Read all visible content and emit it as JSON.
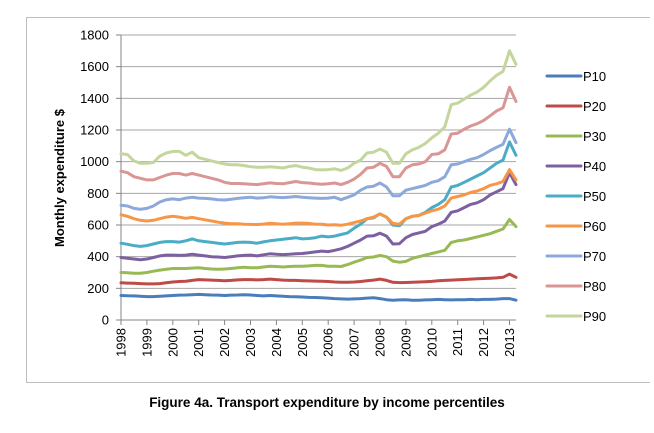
{
  "caption": "Figure 4a. Transport expenditure by income percentiles",
  "chart_data": {
    "type": "line",
    "title": "",
    "xlabel": "",
    "ylabel": "Monthly expenditure $",
    "ylim": [
      0,
      1800
    ],
    "yticks": [
      0,
      200,
      400,
      600,
      800,
      1000,
      1200,
      1400,
      1600,
      1800
    ],
    "xticks": [
      "1998",
      "1999",
      "2000",
      "2001",
      "2002",
      "2003",
      "2004",
      "2005",
      "2006",
      "2007",
      "2008",
      "2009",
      "2010",
      "2011",
      "2012",
      "2013"
    ],
    "x_start": 1998.0,
    "x_step": 0.25,
    "grid": "horizontal",
    "legend_position": "right",
    "series": [
      {
        "name": "P10",
        "color": "#4a7ebb",
        "values": [
          155,
          153,
          152,
          150,
          148,
          148,
          150,
          152,
          155,
          157,
          158,
          160,
          162,
          160,
          158,
          157,
          155,
          157,
          158,
          160,
          158,
          155,
          152,
          155,
          152,
          150,
          148,
          147,
          145,
          143,
          142,
          140,
          138,
          135,
          133,
          132,
          133,
          135,
          138,
          140,
          135,
          128,
          125,
          127,
          128,
          125,
          125,
          127,
          128,
          130,
          128,
          127,
          128,
          128,
          130,
          128,
          130,
          130,
          132,
          135,
          135,
          125
        ]
      },
      {
        "name": "P20",
        "color": "#be4b48",
        "values": [
          235,
          233,
          232,
          230,
          228,
          228,
          230,
          235,
          240,
          243,
          245,
          250,
          255,
          253,
          252,
          250,
          248,
          250,
          253,
          255,
          255,
          253,
          255,
          258,
          255,
          252,
          250,
          250,
          248,
          247,
          246,
          245,
          243,
          240,
          238,
          238,
          240,
          243,
          248,
          252,
          258,
          250,
          238,
          236,
          237,
          238,
          240,
          242,
          244,
          248,
          250,
          252,
          254,
          256,
          258,
          260,
          262,
          264,
          266,
          270,
          290,
          270
        ]
      },
      {
        "name": "P30",
        "color": "#98b954",
        "values": [
          300,
          298,
          295,
          295,
          300,
          308,
          315,
          320,
          325,
          325,
          325,
          328,
          330,
          325,
          322,
          320,
          322,
          325,
          330,
          333,
          330,
          330,
          335,
          340,
          338,
          335,
          338,
          340,
          340,
          342,
          345,
          345,
          340,
          340,
          338,
          350,
          365,
          378,
          395,
          398,
          408,
          400,
          372,
          365,
          370,
          390,
          400,
          410,
          420,
          430,
          440,
          490,
          500,
          505,
          515,
          525,
          535,
          545,
          560,
          575,
          635,
          590
        ]
      },
      {
        "name": "P40",
        "color": "#7d60a0",
        "values": [
          395,
          390,
          385,
          380,
          385,
          395,
          405,
          410,
          410,
          408,
          410,
          415,
          410,
          405,
          400,
          398,
          395,
          400,
          405,
          408,
          410,
          405,
          412,
          418,
          415,
          413,
          415,
          418,
          420,
          425,
          430,
          435,
          432,
          440,
          450,
          465,
          485,
          505,
          530,
          532,
          548,
          530,
          480,
          482,
          520,
          540,
          550,
          560,
          590,
          605,
          625,
          680,
          690,
          710,
          730,
          740,
          760,
          790,
          810,
          830,
          930,
          855
        ]
      },
      {
        "name": "P50",
        "color": "#4bacc6",
        "values": [
          485,
          478,
          470,
          465,
          470,
          480,
          490,
          495,
          495,
          492,
          500,
          512,
          500,
          495,
          490,
          485,
          480,
          485,
          490,
          492,
          490,
          485,
          493,
          500,
          505,
          510,
          515,
          520,
          512,
          515,
          520,
          530,
          525,
          530,
          540,
          550,
          580,
          605,
          640,
          645,
          670,
          650,
          600,
          595,
          640,
          655,
          660,
          680,
          710,
          730,
          760,
          840,
          850,
          870,
          890,
          910,
          930,
          960,
          990,
          1010,
          1125,
          1040
        ]
      },
      {
        "name": "P60",
        "color": "#f79646",
        "values": [
          665,
          655,
          640,
          630,
          625,
          630,
          640,
          650,
          655,
          650,
          642,
          648,
          640,
          633,
          625,
          618,
          612,
          608,
          608,
          605,
          604,
          603,
          606,
          610,
          608,
          605,
          608,
          612,
          612,
          610,
          605,
          605,
          600,
          602,
          598,
          605,
          615,
          625,
          640,
          650,
          670,
          650,
          610,
          605,
          640,
          655,
          660,
          675,
          690,
          700,
          720,
          770,
          780,
          790,
          805,
          815,
          830,
          850,
          860,
          875,
          950,
          885
        ]
      },
      {
        "name": "P70",
        "color": "#8da9db",
        "values": [
          725,
          720,
          705,
          700,
          705,
          720,
          745,
          760,
          765,
          760,
          770,
          775,
          770,
          768,
          765,
          760,
          758,
          762,
          768,
          772,
          775,
          770,
          772,
          778,
          775,
          773,
          776,
          780,
          775,
          772,
          770,
          768,
          770,
          775,
          760,
          775,
          790,
          820,
          840,
          845,
          865,
          840,
          785,
          785,
          820,
          830,
          840,
          850,
          870,
          880,
          905,
          980,
          985,
          1000,
          1015,
          1025,
          1045,
          1070,
          1090,
          1110,
          1205,
          1120
        ]
      },
      {
        "name": "P80",
        "color": "#d99694",
        "values": [
          940,
          930,
          905,
          895,
          885,
          885,
          900,
          915,
          925,
          925,
          915,
          925,
          915,
          905,
          895,
          885,
          870,
          862,
          862,
          860,
          858,
          855,
          860,
          866,
          862,
          860,
          868,
          875,
          868,
          865,
          860,
          858,
          860,
          865,
          855,
          870,
          890,
          920,
          960,
          965,
          990,
          970,
          905,
          905,
          960,
          980,
          985,
          1000,
          1045,
          1050,
          1075,
          1175,
          1180,
          1205,
          1225,
          1240,
          1260,
          1290,
          1320,
          1340,
          1470,
          1380
        ]
      },
      {
        "name": "P90",
        "color": "#c3d69b",
        "values": [
          1050,
          1045,
          1005,
          990,
          990,
          995,
          1035,
          1055,
          1065,
          1065,
          1040,
          1060,
          1025,
          1015,
          1005,
          995,
          985,
          980,
          980,
          975,
          968,
          965,
          965,
          968,
          965,
          960,
          970,
          975,
          965,
          960,
          950,
          948,
          950,
          955,
          945,
          960,
          990,
          1010,
          1055,
          1060,
          1080,
          1060,
          990,
          990,
          1050,
          1075,
          1090,
          1115,
          1150,
          1180,
          1220,
          1360,
          1370,
          1395,
          1420,
          1440,
          1470,
          1510,
          1545,
          1570,
          1700,
          1615
        ]
      }
    ]
  }
}
